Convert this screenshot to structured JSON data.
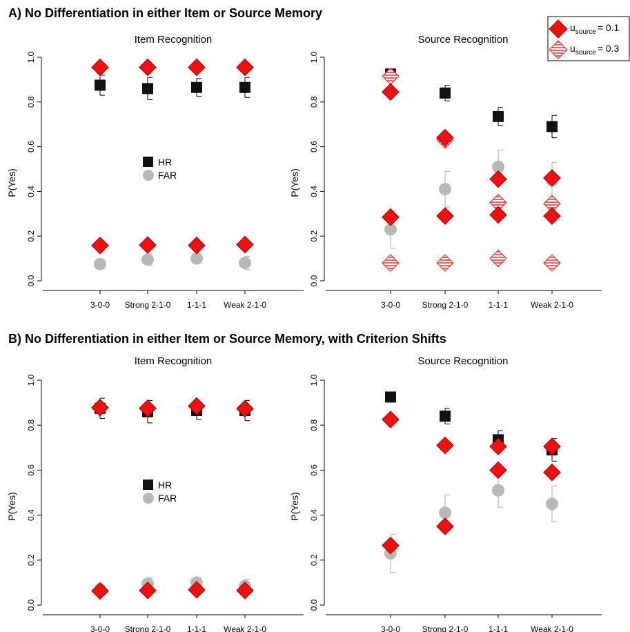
{
  "sections": [
    {
      "title": "A) No Differentiation in either Item or Source Memory"
    },
    {
      "title": "B) No Differentiation in either Item or Source Memory, with Criterion Shifts"
    }
  ],
  "legend_box": {
    "entries": [
      {
        "symbol": "u",
        "subscript": "source",
        "value": "= 0.1",
        "style": "solid-diamond"
      },
      {
        "symbol": "u",
        "subscript": "source",
        "value": "= 0.3",
        "style": "hatched-diamond"
      }
    ]
  },
  "inset_legend": {
    "hr_label": "HR",
    "far_label": "FAR"
  },
  "colors": {
    "hr": "#000000",
    "far": "#b8b8b8",
    "model": "#ee1111",
    "hatch": "#f07070"
  },
  "chart_data": [
    {
      "type": "scatter",
      "title": "Item Recognition",
      "ylabel": "P(Yes)",
      "ylim": [
        0,
        1
      ],
      "yticks": [
        "0.0",
        "0.2",
        "0.4",
        "0.6",
        "0.8",
        "1.0"
      ],
      "categories": [
        "3-0-0",
        "Strong 2-1-0",
        "1-1-1",
        "Weak 2-1-0"
      ],
      "has_inset_legend": true,
      "series": [
        {
          "name": "HR",
          "kind": "hr",
          "values": [
            0.875,
            0.86,
            0.865,
            0.865
          ],
          "err": [
            0.045,
            0.05,
            0.04,
            0.045
          ]
        },
        {
          "name": "FAR",
          "kind": "far",
          "values": [
            0.075,
            0.095,
            0.1,
            0.08
          ],
          "err": [
            0.01,
            0.025,
            0.02,
            0.03
          ]
        },
        {
          "kind": "model01",
          "values": [
            0.955,
            0.955,
            0.955,
            0.955
          ]
        },
        {
          "kind": "model01",
          "values": [
            0.158,
            0.16,
            0.158,
            0.162
          ]
        }
      ]
    },
    {
      "type": "scatter",
      "title": "Source Recognition",
      "ylabel": "P(Yes)",
      "ylim": [
        0,
        1
      ],
      "yticks": [
        "0.0",
        "0.2",
        "0.4",
        "0.6",
        "0.8",
        "1.0"
      ],
      "categories": [
        "3-0-0",
        "Strong 2-1-0",
        "1-1-1",
        "Weak 2-1-0"
      ],
      "has_inset_legend": false,
      "series": [
        {
          "name": "HR",
          "kind": "hr",
          "values": [
            0.925,
            0.84,
            0.735,
            0.69
          ],
          "err": [
            0.02,
            0.035,
            0.04,
            0.05
          ]
        },
        {
          "name": "FAR",
          "kind": "far",
          "values": [
            0.23,
            0.41,
            0.51,
            0.45
          ],
          "err": [
            0.085,
            0.08,
            0.075,
            0.08
          ]
        },
        {
          "kind": "model01",
          "values": [
            0.845,
            0.64,
            0.455,
            0.46
          ]
        },
        {
          "kind": "model01",
          "values": [
            0.285,
            0.29,
            0.295,
            0.29
          ]
        },
        {
          "kind": "model03",
          "values": [
            0.915,
            0.63,
            0.35,
            0.345
          ]
        },
        {
          "kind": "model03",
          "values": [
            0.08,
            0.08,
            0.1,
            0.08
          ]
        }
      ]
    },
    {
      "type": "scatter",
      "title": "Item Recognition",
      "ylabel": "P(Yes)",
      "ylim": [
        0,
        1
      ],
      "yticks": [
        "0.0",
        "0.2",
        "0.4",
        "0.6",
        "0.8",
        "1.0"
      ],
      "categories": [
        "3-0-0",
        "Strong 2-1-0",
        "1-1-1",
        "Weak 2-1-0"
      ],
      "has_inset_legend": true,
      "series": [
        {
          "name": "HR",
          "kind": "hr",
          "values": [
            0.875,
            0.86,
            0.865,
            0.865
          ],
          "err": [
            0.045,
            0.05,
            0.04,
            0.045
          ]
        },
        {
          "name": "FAR",
          "kind": "far",
          "values": [
            0.07,
            0.095,
            0.1,
            0.085
          ],
          "err": [
            0.01,
            0.025,
            0.02,
            0.03
          ]
        },
        {
          "kind": "model01",
          "values": [
            0.878,
            0.875,
            0.885,
            0.873
          ]
        },
        {
          "kind": "model01",
          "values": [
            0.063,
            0.065,
            0.068,
            0.065
          ]
        }
      ]
    },
    {
      "type": "scatter",
      "title": "Source Recognition",
      "ylabel": "P(Yes)",
      "ylim": [
        0,
        1
      ],
      "yticks": [
        "0.0",
        "0.2",
        "0.4",
        "0.6",
        "0.8",
        "1.0"
      ],
      "categories": [
        "3-0-0",
        "Strong 2-1-0",
        "1-1-1",
        "Weak 2-1-0"
      ],
      "has_inset_legend": false,
      "series": [
        {
          "name": "HR",
          "kind": "hr",
          "values": [
            0.925,
            0.84,
            0.735,
            0.69
          ],
          "err": [
            0.02,
            0.035,
            0.04,
            0.05
          ]
        },
        {
          "name": "FAR",
          "kind": "far",
          "values": [
            0.23,
            0.41,
            0.51,
            0.45
          ],
          "err": [
            0.085,
            0.08,
            0.075,
            0.08
          ]
        },
        {
          "kind": "model01",
          "values": [
            0.825,
            0.71,
            0.705,
            0.705
          ]
        },
        {
          "kind": "model01",
          "values": [
            0.265,
            0.35,
            0.6,
            0.59
          ]
        }
      ]
    }
  ]
}
